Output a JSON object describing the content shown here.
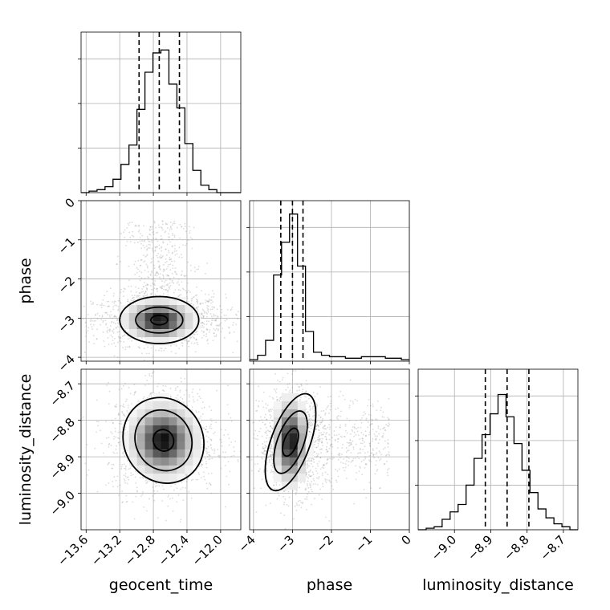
{
  "chart_data": {
    "type": "corner",
    "parameters": [
      "geocent_time",
      "phase",
      "luminosity_distance"
    ],
    "grid": true,
    "quantile_lines": "dashed",
    "histograms": [
      {
        "parameter": "geocent_time",
        "xlim": [
          -13.66,
          -11.76
        ],
        "ylim": [
          0,
          1.08
        ],
        "xticks": [
          -13.6,
          -13.2,
          -12.8,
          -12.4,
          -12.0
        ],
        "xtick_labels": [
          "−13.6",
          "−13.2",
          "−12.8",
          "−12.4",
          "−12.0"
        ],
        "quantiles": [
          -12.97,
          -12.73,
          -12.49
        ],
        "bins_start": -13.66,
        "bin_width": 0.095,
        "counts": [
          0.0,
          0.01,
          0.02,
          0.04,
          0.09,
          0.19,
          0.32,
          0.56,
          0.81,
          0.94,
          0.96,
          0.73,
          0.57,
          0.33,
          0.15,
          0.05,
          0.02,
          0.0,
          0.0,
          0.0
        ]
      },
      {
        "parameter": "phase",
        "xlim": [
          -4.1,
          0.0
        ],
        "ylim": [
          0,
          1.08
        ],
        "xticks": [
          -4,
          -3,
          -2,
          -1,
          0
        ],
        "xtick_labels": [
          "−4",
          "−3",
          "−2",
          "−1",
          "0"
        ],
        "quantiles": [
          -3.3,
          -3.0,
          -2.73
        ],
        "bins_start": -4.1,
        "bin_width": 0.205,
        "counts": [
          0.01,
          0.04,
          0.14,
          0.58,
          0.8,
          0.99,
          0.64,
          0.2,
          0.06,
          0.04,
          0.03,
          0.03,
          0.02,
          0.02,
          0.03,
          0.03,
          0.03,
          0.02,
          0.02,
          0.01
        ]
      },
      {
        "parameter": "luminosity_distance",
        "xlim": [
          -9.1,
          -8.66
        ],
        "ylim": [
          0,
          1.08
        ],
        "xticks": [
          -9.0,
          -8.9,
          -8.8,
          -8.7
        ],
        "xtick_labels": [
          "−9.0",
          "−8.9",
          "−8.8",
          "−8.7"
        ],
        "quantiles": [
          -8.915,
          -8.855,
          -8.795
        ],
        "bins_start": -9.1,
        "bin_width": 0.022,
        "counts": [
          0.0,
          0.01,
          0.02,
          0.07,
          0.12,
          0.17,
          0.3,
          0.48,
          0.64,
          0.78,
          0.91,
          0.76,
          0.58,
          0.4,
          0.25,
          0.14,
          0.08,
          0.04,
          0.02,
          0.0
        ]
      }
    ],
    "joint_panels": [
      {
        "x": "geocent_time",
        "y": "phase",
        "xlim": [
          -13.66,
          -11.76
        ],
        "ylim": [
          -4.1,
          0.0
        ],
        "yticks": [
          0,
          -1,
          -2,
          -3,
          -4
        ],
        "ytick_labels": [
          "0",
          "−1",
          "−2",
          "−3",
          "−4"
        ],
        "center": [
          -12.73,
          -3.05
        ],
        "spread": [
          0.3,
          0.25
        ],
        "tail_to": -0.5,
        "contours": [
          {
            "rx": 0.1,
            "ry": 0.12
          },
          {
            "rx": 0.28,
            "ry": 0.33
          },
          {
            "rx": 0.47,
            "ry": 0.6
          }
        ]
      },
      {
        "x": "geocent_time",
        "y": "luminosity_distance",
        "xlim": [
          -13.66,
          -11.76
        ],
        "ylim": [
          -9.1,
          -8.66
        ],
        "yticks": [
          -9.0,
          -8.9,
          -8.8,
          -8.7
        ],
        "ytick_labels": [
          "−9.0",
          "−8.9",
          "−8.8",
          "−8.7"
        ],
        "center": [
          -12.68,
          -8.855
        ],
        "spread": [
          0.25,
          0.055
        ],
        "contours": [
          {
            "rx": 0.12,
            "ry": 0.03
          },
          {
            "rx": 0.33,
            "ry": 0.085
          },
          {
            "rx": 0.47,
            "ry": 0.12
          }
        ]
      },
      {
        "x": "phase",
        "y": "luminosity_distance",
        "xlim": [
          -4.1,
          0.0
        ],
        "ylim": [
          -9.1,
          -8.66
        ],
        "center": [
          -3.05,
          -8.86
        ],
        "spread": [
          0.3,
          0.055
        ],
        "tail_to": -0.5,
        "contours": [
          {
            "rx": 0.17,
            "ry": 0.04
          },
          {
            "rx": 0.34,
            "ry": 0.09
          },
          {
            "rx": 0.5,
            "ry": 0.14
          }
        ]
      }
    ]
  }
}
